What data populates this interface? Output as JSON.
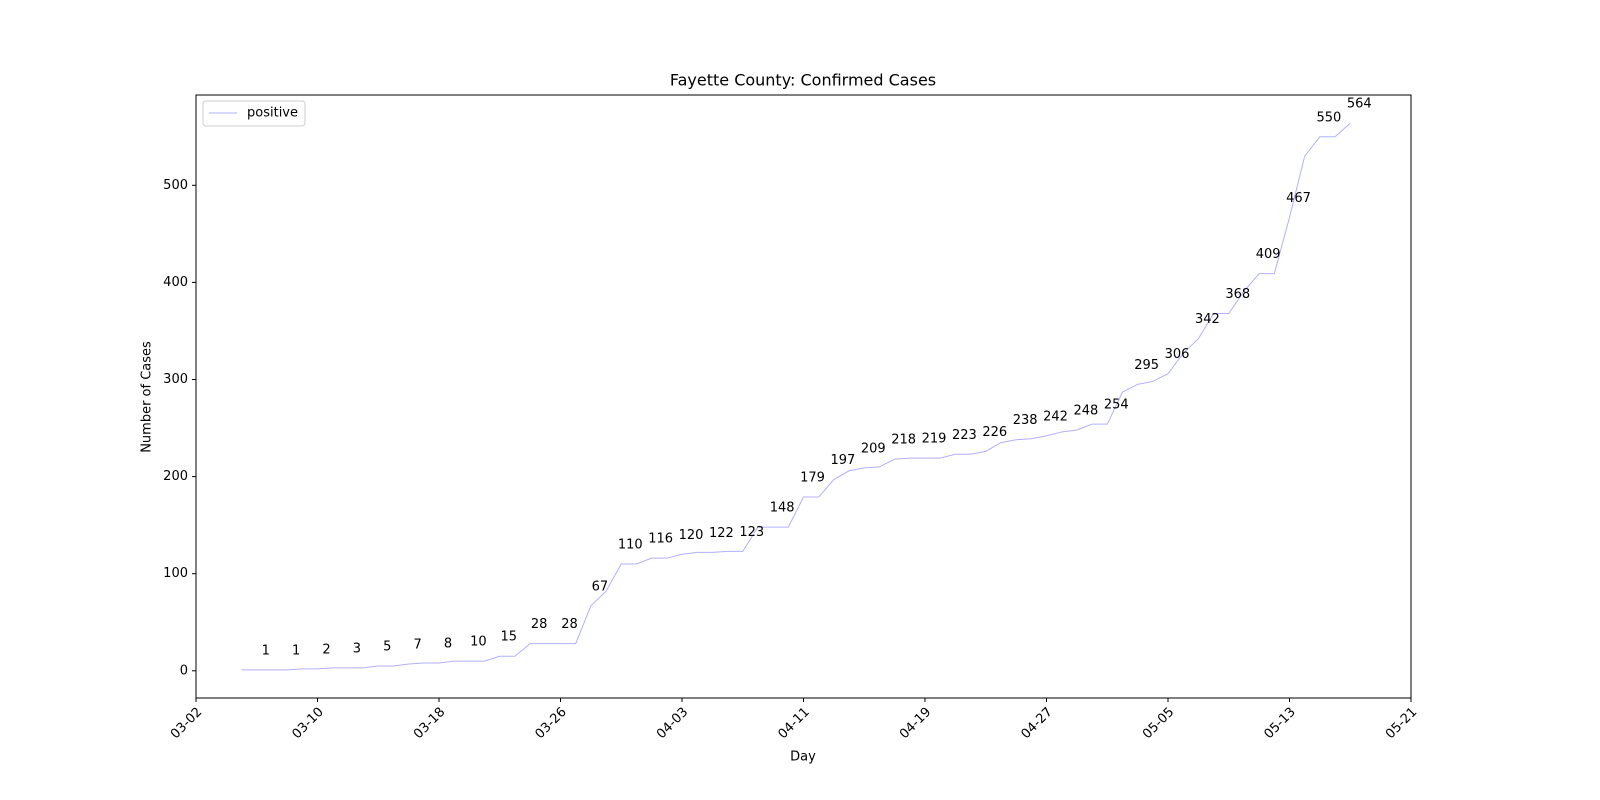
{
  "chart_data": {
    "type": "line",
    "title": "Fayette County: Confirmed Cases",
    "x_label": "Day",
    "y_label": "Number of Cases",
    "x": [
      "03-05",
      "03-06",
      "03-07",
      "03-08",
      "03-09",
      "03-10",
      "03-11",
      "03-12",
      "03-13",
      "03-14",
      "03-15",
      "03-16",
      "03-17",
      "03-18",
      "03-19",
      "03-20",
      "03-21",
      "03-22",
      "03-23",
      "03-24",
      "03-25",
      "03-26",
      "03-27",
      "03-28",
      "03-29",
      "03-30",
      "03-31",
      "04-01",
      "04-02",
      "04-03",
      "04-04",
      "04-05",
      "04-06",
      "04-07",
      "04-08",
      "04-09",
      "04-10",
      "04-11",
      "04-12",
      "04-13",
      "04-14",
      "04-15",
      "04-16",
      "04-17",
      "04-18",
      "04-19",
      "04-20",
      "04-21",
      "04-22",
      "04-23",
      "04-24",
      "04-25",
      "04-26",
      "04-27",
      "04-28",
      "04-29",
      "04-30",
      "05-01",
      "05-02",
      "05-03",
      "05-04",
      "05-05",
      "05-06",
      "05-07",
      "05-08",
      "05-09",
      "05-10",
      "05-11",
      "05-12",
      "05-13",
      "05-14",
      "05-15",
      "05-16",
      "05-17"
    ],
    "series": [
      {
        "name": "positive",
        "color": "#b0b0ff",
        "values": [
          1,
          1,
          1,
          1,
          2,
          2,
          3,
          3,
          3,
          5,
          5,
          7,
          8,
          8,
          10,
          10,
          10,
          15,
          15,
          28,
          28,
          28,
          28,
          67,
          82,
          110,
          110,
          116,
          116,
          120,
          122,
          122,
          123,
          123,
          148,
          148,
          148,
          179,
          179,
          197,
          206,
          209,
          210,
          218,
          219,
          219,
          219,
          223,
          223,
          226,
          235,
          238,
          239,
          242,
          246,
          248,
          254,
          254,
          287,
          295,
          298,
          306,
          327,
          342,
          368,
          368,
          391,
          409,
          409,
          467,
          530,
          550,
          550,
          564
        ],
        "labeled_indices": [
          1,
          3,
          5,
          7,
          9,
          11,
          13,
          15,
          17,
          19,
          21,
          23,
          25,
          27,
          29,
          31,
          33,
          35,
          37,
          39,
          41,
          43,
          45,
          47,
          49,
          51,
          53,
          55,
          57,
          59,
          61,
          63,
          65,
          67,
          69,
          71,
          73
        ]
      }
    ],
    "xlim": [
      "03-02",
      "05-21"
    ],
    "xticks": [
      "03-02",
      "03-10",
      "03-18",
      "03-26",
      "04-03",
      "04-11",
      "04-19",
      "04-27",
      "05-05",
      "05-13",
      "05-21"
    ],
    "ylim": [
      -28,
      593
    ],
    "yticks": [
      0,
      100,
      200,
      300,
      400,
      500
    ],
    "legend": "upper left",
    "grid": false
  }
}
